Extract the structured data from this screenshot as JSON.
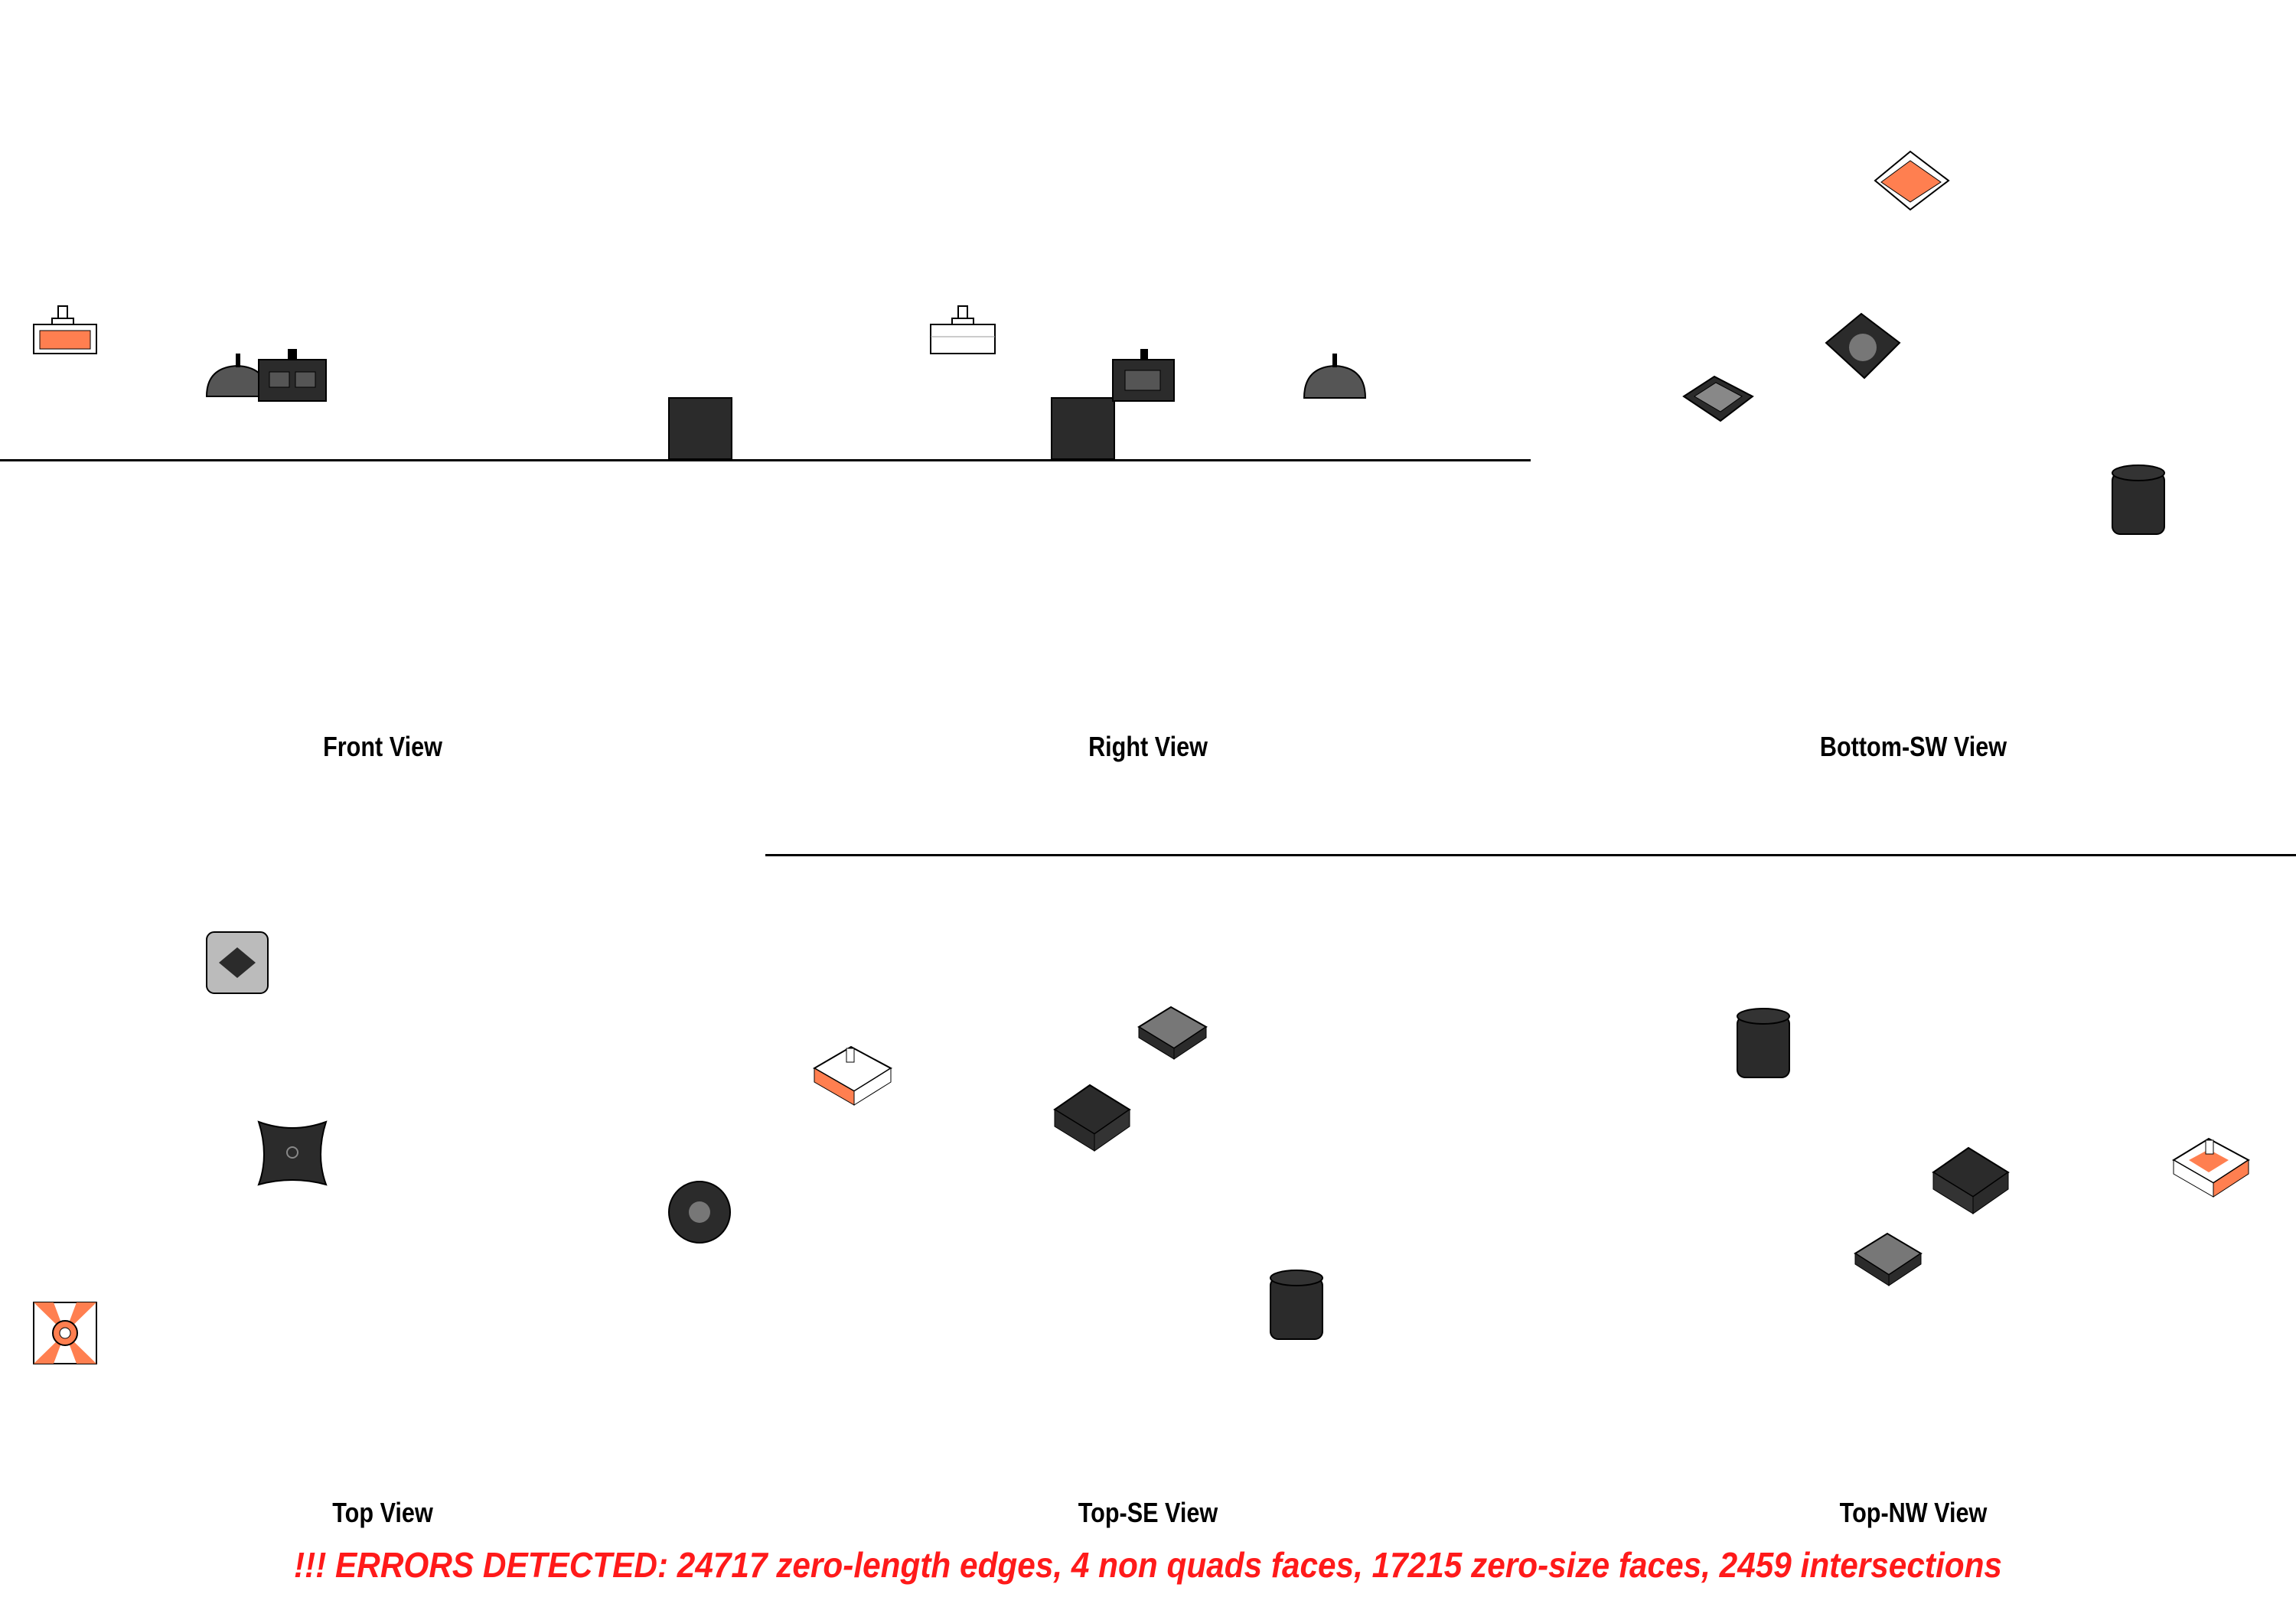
{
  "views": {
    "front": "Front View",
    "right": "Right View",
    "bottom_sw": "Bottom-SW View",
    "top": "Top View",
    "top_se": "Top-SE View",
    "top_nw": "Top-NW View"
  },
  "errors": "!!! ERRORS DETECTED: 24717 zero-length edges, 4 non quads faces, 17215 zero-size faces, 2459 intersections",
  "colors": {
    "accent": "#ff7f50",
    "object": "#2b2b2b",
    "wire": "#555555",
    "error": "#ff1a1a"
  }
}
